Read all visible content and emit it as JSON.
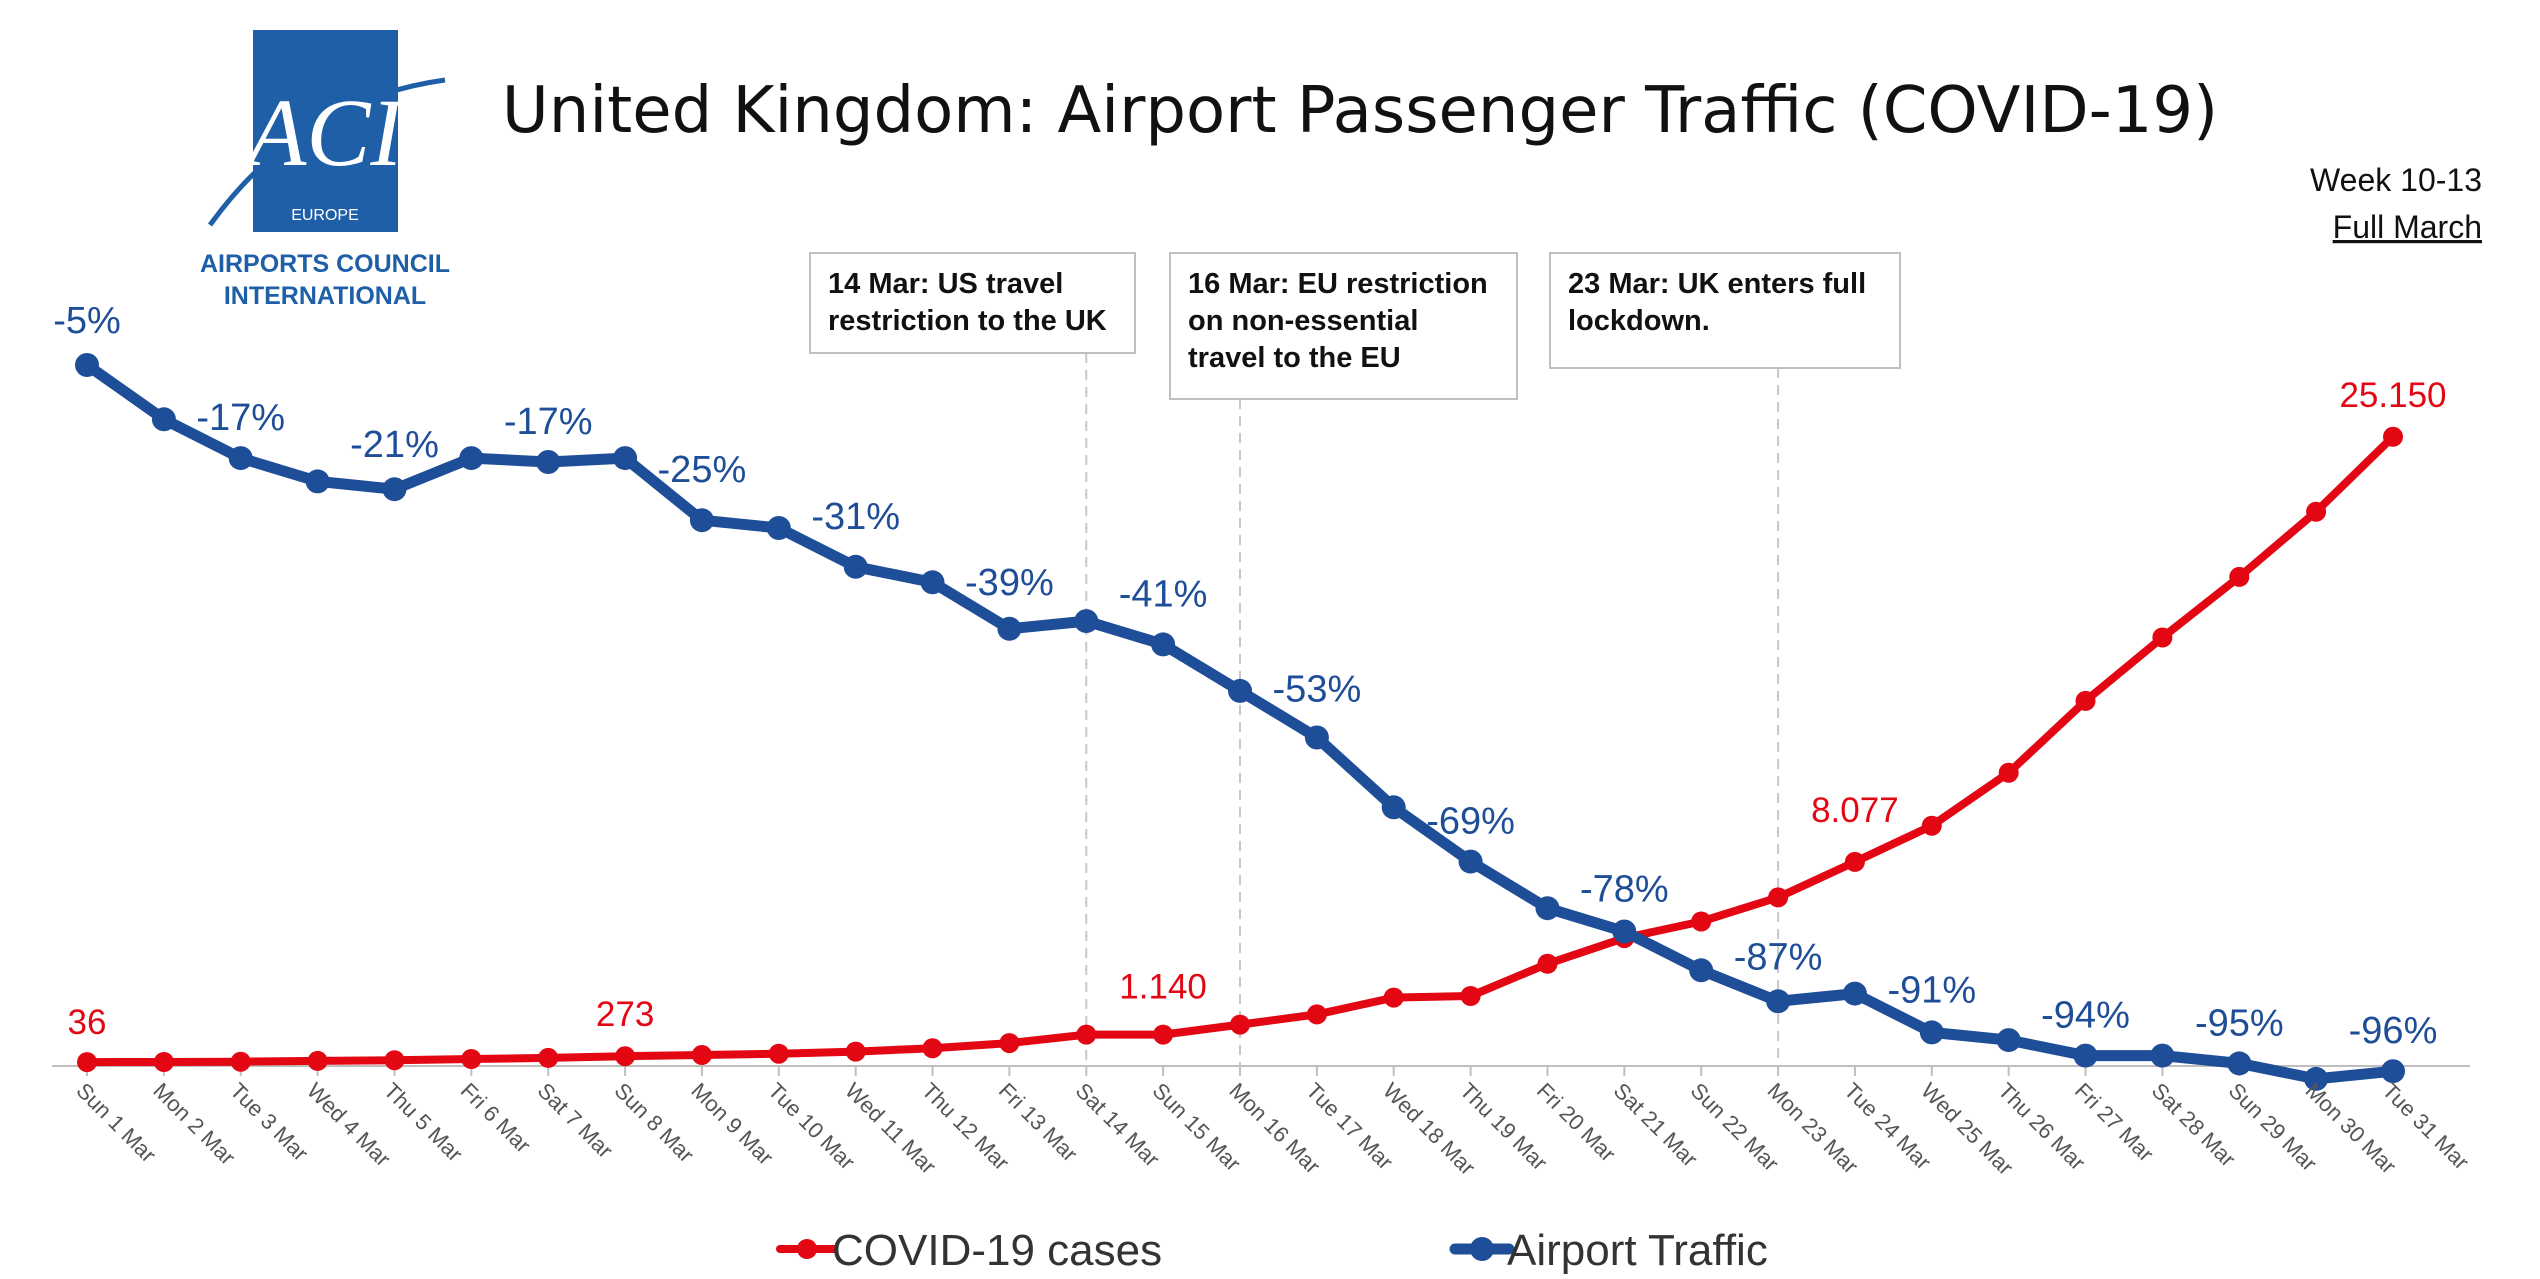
{
  "title": "United Kingdom: Airport Passenger Traffic (COVID-19)",
  "subtitle_week": "Week 10-13",
  "subtitle_period": "Full March",
  "logo": {
    "mark": "ACI",
    "region": "EUROPE",
    "line1": "AIRPORTS COUNCIL",
    "line2": "INTERNATIONAL"
  },
  "colors": {
    "traffic": "#1f4e99",
    "covid": "#e30613",
    "logo_blue": "#1f5fa8"
  },
  "annotations": [
    {
      "date": "Sat 14 Mar",
      "lines": [
        "14 Mar: US travel",
        "restriction to the UK"
      ]
    },
    {
      "date": "Mon 16 Mar",
      "lines": [
        "16 Mar: EU restriction",
        "on non-essential",
        "travel to the EU"
      ]
    },
    {
      "date": "Mon 23 Mar",
      "lines": [
        "23 Mar: UK enters full",
        "lockdown."
      ]
    }
  ],
  "legend": [
    {
      "series": "covid",
      "label": "COVID-19 cases"
    },
    {
      "series": "traffic",
      "label": "Airport Traffic"
    }
  ],
  "chart_data": {
    "type": "line",
    "title": "United Kingdom: Airport Passenger Traffic (COVID-19)",
    "x": [
      "Sun 1 Mar",
      "Mon 2 Mar",
      "Tue 3 Mar",
      "Wed 4 Mar",
      "Thu 5 Mar",
      "Fri 6 Mar",
      "Sat 7 Mar",
      "Sun 8 Mar",
      "Mon 9 Mar",
      "Tue 10 Mar",
      "Wed 11 Mar",
      "Thu 12 Mar",
      "Fri 13 Mar",
      "Sat 14 Mar",
      "Sun 15 Mar",
      "Mon 16 Mar",
      "Tue 17 Mar",
      "Wed 18 Mar",
      "Thu 19 Mar",
      "Fri 20 Mar",
      "Sat 21 Mar",
      "Sun 22 Mar",
      "Mon 23 Mar",
      "Tue 24 Mar",
      "Wed 25 Mar",
      "Thu 26 Mar",
      "Fri 27 Mar",
      "Sat 28 Mar",
      "Sun 29 Mar",
      "Mon 30 Mar",
      "Tue 31 Mar"
    ],
    "series": [
      {
        "name": "Airport Traffic",
        "unit": "%",
        "values": [
          -5,
          -12,
          -17,
          -20,
          -21,
          -17,
          -17.5,
          -17,
          -25,
          -26,
          -31,
          -33,
          -39,
          -38,
          -41,
          -47,
          -53,
          -62,
          -69,
          -75,
          -78,
          -83,
          -87,
          -86,
          -91,
          -92,
          -94,
          -94,
          -95,
          -97,
          -96
        ],
        "labels": {
          "0": "-5%",
          "2": "-17%",
          "4": "-21%",
          "6": "-17%",
          "8": "-25%",
          "10": "-31%",
          "12": "-39%",
          "14": "-41%",
          "16": "-53%",
          "18": "-69%",
          "20": "-78%",
          "22": "-87%",
          "24": "-91%",
          "26": "-94%",
          "28": "-95%",
          "30": "-96%"
        }
      },
      {
        "name": "COVID-19 cases",
        "unit": "cases",
        "values": [
          36,
          40,
          51,
          85,
          114,
          160,
          206,
          273,
          321,
          373,
          456,
          590,
          798,
          1140,
          1140,
          1543,
          1950,
          2626,
          2689,
          3983,
          5018,
          5683,
          6650,
          8077,
          9529,
          11658,
          14543,
          17089,
          19522,
          22141,
          25150
        ],
        "labels": {
          "0": "36",
          "7": "273",
          "14": "1.140",
          "23": "8.077",
          "30": "25.150"
        }
      }
    ]
  }
}
